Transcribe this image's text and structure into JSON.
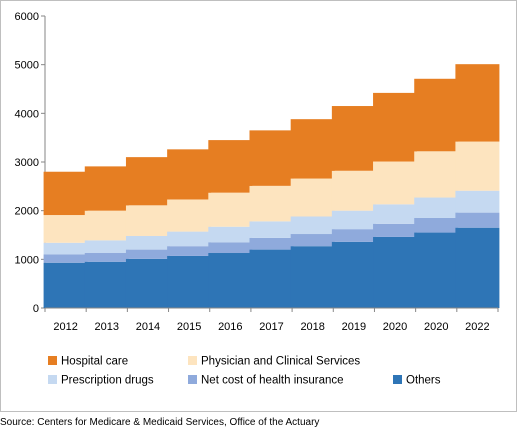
{
  "source": "Source: Centers for Medicare & Medicaid Services, Office of the Actuary",
  "chart_data": {
    "type": "bar",
    "stacked": true,
    "title": "",
    "xlabel": "",
    "ylabel": "",
    "ylim": [
      0,
      6000
    ],
    "y_ticks": [
      0,
      1000,
      2000,
      3000,
      4000,
      5000,
      6000
    ],
    "grid": false,
    "legend_position": "bottom",
    "categories": [
      "2012",
      "2013",
      "2014",
      "2015",
      "2016",
      "2017",
      "2018",
      "2019",
      "2020",
      "2020",
      "2022"
    ],
    "series": [
      {
        "name": "Others",
        "color": "#2e75b6",
        "values": [
          930,
          950,
          1010,
          1070,
          1130,
          1200,
          1270,
          1360,
          1460,
          1550,
          1650
        ]
      },
      {
        "name": "Net cost of health insurance",
        "color": "#8faadc",
        "values": [
          170,
          180,
          190,
          200,
          220,
          240,
          250,
          260,
          270,
          300,
          310
        ]
      },
      {
        "name": "Prescription drugs",
        "color": "#c5d9f1",
        "values": [
          240,
          260,
          280,
          300,
          320,
          340,
          360,
          380,
          400,
          420,
          450
        ]
      },
      {
        "name": "Physician and Clinical Services",
        "color": "#fde4bf",
        "values": [
          570,
          610,
          630,
          660,
          700,
          730,
          780,
          820,
          880,
          950,
          1010
        ]
      },
      {
        "name": "Hospital care",
        "color": "#e67e22",
        "values": [
          890,
          910,
          990,
          1030,
          1080,
          1140,
          1220,
          1330,
          1410,
          1490,
          1590
        ]
      }
    ],
    "legend": [
      {
        "name": "Hospital care",
        "color": "#e67e22"
      },
      {
        "name": "Physician and Clinical Services",
        "color": "#fde4bf"
      },
      {
        "name": "Prescription drugs",
        "color": "#c5d9f1"
      },
      {
        "name": "Net cost of health insurance",
        "color": "#8faadc"
      },
      {
        "name": "Others",
        "color": "#2e75b6"
      }
    ]
  }
}
